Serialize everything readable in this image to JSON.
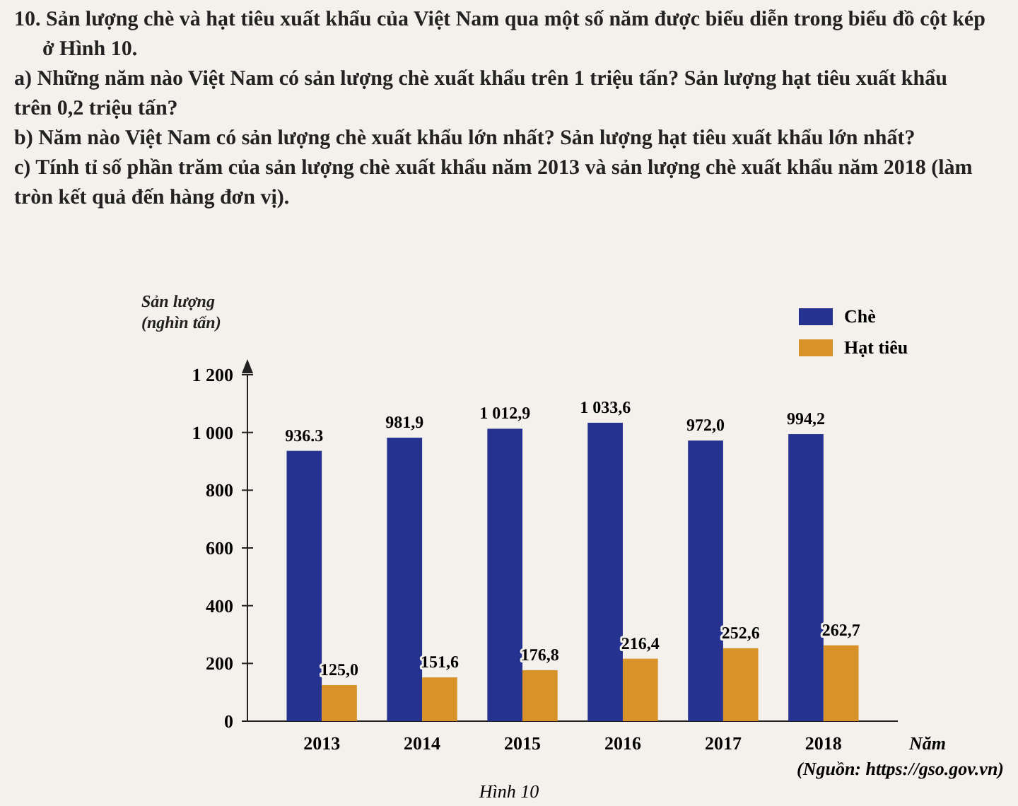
{
  "chart_data": {
    "type": "bar",
    "title": "10. Sản lượng chè và hạt tiêu xuất khẩu của Việt Nam qua một số năm được biểu diễn trong biểu đồ cột kép ở Hình 10.",
    "annotations": [
      "a) Những năm nào Việt Nam có sản lượng chè xuất khẩu trên 1 triệu tấn? Sản lượng hạt tiêu xuất khẩu trên 0,2 triệu tấn?",
      "b) Năm nào Việt Nam có sản lượng chè xuất khẩu lớn nhất? Sản lượng hạt tiêu xuất khẩu lớn nhất?",
      "c) Tính tỉ số phần trăm của sản lượng chè xuất khẩu năm 2013 và sản lượng chè xuất khẩu năm 2018 (làm tròn kết quả đến hàng đơn vị).",
      "(Nguồn: https://gso.gov.vn)",
      "Hình 10"
    ],
    "ylabel": "Sản lượng (nghìn tấn)",
    "xlabel": "Năm",
    "categories": [
      "2013",
      "2014",
      "2015",
      "2016",
      "2017",
      "2018"
    ],
    "series": [
      {
        "name": "Chè",
        "color": "#26328f",
        "values": [
          936.3,
          981.9,
          1012.9,
          1033.6,
          972.0,
          994.2
        ],
        "value_labels": [
          "936.3",
          "981,9",
          "1 012,9",
          "1 033,6",
          "972,0",
          "994,2"
        ]
      },
      {
        "name": "Hạt tiêu",
        "color": "#d8922a",
        "values": [
          125.0,
          151.6,
          176.8,
          216.4,
          252.6,
          262.7
        ],
        "value_labels": [
          "125,0",
          "151,6",
          "176,8",
          "216,4",
          "252,6",
          "262,7"
        ]
      }
    ],
    "ylim": [
      0,
      1200
    ],
    "yticks": [
      0,
      200,
      400,
      600,
      800,
      {
        "value": 1000,
        "label": "1 000"
      },
      {
        "value": 1200,
        "label": "1 200"
      }
    ],
    "legend": "top right"
  }
}
